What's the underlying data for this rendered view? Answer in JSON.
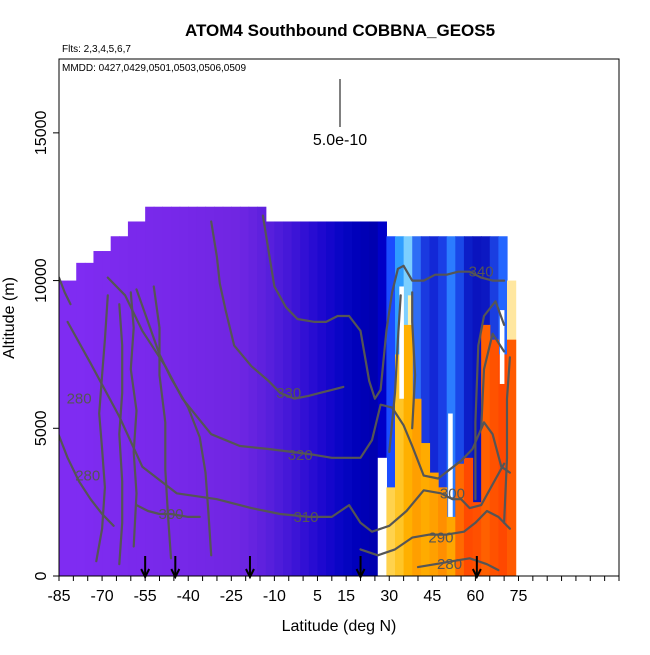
{
  "chart_data": {
    "type": "heatmap",
    "title": "ATOM4 Southbound COBBNA_GEOS5",
    "subtitle_flights": "Flts: 2,3,4,5,6,7",
    "subtitle_dates": "MMDD: 0427,0429,0501,0503,0506,0509",
    "xlabel": "Latitude (deg N)",
    "ylabel": "Altitude (m)",
    "xlim": [
      -85,
      110
    ],
    "ylim": [
      0,
      17500
    ],
    "x_ticks": [
      -85,
      -70,
      -55,
      -40,
      -25,
      -10,
      5,
      15,
      30,
      45,
      60,
      75
    ],
    "y_ticks": [
      0,
      5000,
      10000,
      15000
    ],
    "colorbar_label": "5.0e-10",
    "flight_profile_latitudes": [
      -55,
      -44.5,
      -18.5,
      20,
      60.5
    ],
    "contour_levels": [
      280,
      290,
      300,
      310,
      320,
      330,
      340
    ],
    "contour_labels": [
      {
        "label": "340",
        "lat": 62,
        "alt": 10300
      },
      {
        "label": "330",
        "lat": -5,
        "alt": 6200
      },
      {
        "label": "320",
        "lat": -1,
        "alt": 4100
      },
      {
        "label": "310",
        "lat": 1,
        "alt": 2000
      },
      {
        "label": "300",
        "lat": 52,
        "alt": 2800
      },
      {
        "label": "290",
        "lat": 48,
        "alt": 1300
      },
      {
        "label": "280",
        "lat": 51,
        "alt": 400
      },
      {
        "label": "280",
        "lat": -78,
        "alt": 6000
      },
      {
        "label": "280",
        "lat": -75,
        "alt": 3400
      },
      {
        "label": "300",
        "lat": -46,
        "alt": 2100
      }
    ],
    "columns": [
      {
        "lat": -85,
        "top": 10000,
        "color": "#7f2cf2"
      },
      {
        "lat": -82,
        "top": 10000,
        "color": "#7f2cf2"
      },
      {
        "lat": -79,
        "top": 10600,
        "color": "#7f2cf2"
      },
      {
        "lat": -76,
        "top": 10600,
        "color": "#7e2bf1"
      },
      {
        "lat": -73,
        "top": 11000,
        "color": "#7d2bef"
      },
      {
        "lat": -70,
        "top": 11000,
        "color": "#7d2bef"
      },
      {
        "lat": -67,
        "top": 11500,
        "color": "#7c2aee"
      },
      {
        "lat": -64,
        "top": 11500,
        "color": "#7b2aed"
      },
      {
        "lat": -61,
        "top": 12000,
        "color": "#7a29ec"
      },
      {
        "lat": -58,
        "top": 12000,
        "color": "#7a29ec"
      },
      {
        "lat": -55,
        "top": 12500,
        "color": "#7929eb"
      },
      {
        "lat": -52,
        "top": 12500,
        "color": "#7829ea"
      },
      {
        "lat": -49,
        "top": 12500,
        "color": "#7828ea"
      },
      {
        "lat": -46,
        "top": 12500,
        "color": "#7728e9"
      },
      {
        "lat": -43,
        "top": 12500,
        "color": "#7628e8"
      },
      {
        "lat": -40,
        "top": 12500,
        "color": "#7527e7"
      },
      {
        "lat": -37,
        "top": 12500,
        "color": "#7427e6"
      },
      {
        "lat": -34,
        "top": 12500,
        "color": "#7327e5"
      },
      {
        "lat": -31,
        "top": 12500,
        "color": "#7226e4"
      },
      {
        "lat": -28,
        "top": 12500,
        "color": "#7126e3"
      },
      {
        "lat": -25,
        "top": 12500,
        "color": "#7026e2"
      },
      {
        "lat": -22,
        "top": 12500,
        "color": "#6c25e2"
      },
      {
        "lat": -19,
        "top": 12500,
        "color": "#6623e0"
      },
      {
        "lat": -16,
        "top": 12500,
        "color": "#5f21de"
      },
      {
        "lat": -13,
        "top": 12000,
        "color": "#571fdc"
      },
      {
        "lat": -10,
        "top": 12000,
        "color": "#4e1cda"
      },
      {
        "lat": -7,
        "top": 12000,
        "color": "#4618d8"
      },
      {
        "lat": -4,
        "top": 12000,
        "color": "#3c14d6"
      },
      {
        "lat": -1,
        "top": 12000,
        "color": "#3210d4"
      },
      {
        "lat": 2,
        "top": 12000,
        "color": "#280cd2"
      },
      {
        "lat": 5,
        "top": 12000,
        "color": "#1e08cf"
      },
      {
        "lat": 8,
        "top": 12000,
        "color": "#1406cb"
      },
      {
        "lat": 11,
        "top": 12000,
        "color": "#0a05c6"
      },
      {
        "lat": 14,
        "top": 12000,
        "color": "#0404c0"
      },
      {
        "lat": 17,
        "top": 12000,
        "color": "#0000bb"
      },
      {
        "lat": 20,
        "top": 12000,
        "color": "#0000b5"
      },
      {
        "lat": 23,
        "top": 12000,
        "color": "#0000b0"
      },
      {
        "lat": 26,
        "top": 12000,
        "color": "#0000c8"
      },
      {
        "lat": 29,
        "top": 11500,
        "color": "#1a4cff"
      },
      {
        "lat": 32,
        "top": 11500,
        "color": "#2f9dff"
      },
      {
        "lat": 35,
        "top": 11500,
        "color": "#7ccfff"
      },
      {
        "lat": 38,
        "top": 11500,
        "color": "#2e6df5"
      },
      {
        "lat": 41,
        "top": 11500,
        "color": "#1a3ae0"
      },
      {
        "lat": 44,
        "top": 11500,
        "color": "#1328d6"
      },
      {
        "lat": 47,
        "top": 11500,
        "color": "#1a3ee6"
      },
      {
        "lat": 50,
        "top": 11500,
        "color": "#2b7cff"
      },
      {
        "lat": 53,
        "top": 11500,
        "color": "#1a48e8"
      },
      {
        "lat": 56,
        "top": 11500,
        "color": "#0c1ec8"
      },
      {
        "lat": 59,
        "top": 11500,
        "color": "#0a14bf"
      },
      {
        "lat": 62,
        "top": 11500,
        "color": "#0c18c2"
      },
      {
        "lat": 65,
        "top": 11500,
        "color": "#1a3ee0"
      },
      {
        "lat": 68,
        "top": 11500,
        "color": "#2466ff"
      },
      {
        "lat": 71,
        "top": 10000,
        "color": "#ffe7a0"
      }
    ],
    "lower_patches": [
      {
        "lat": 26,
        "top": 4000,
        "color": "#ffffff"
      },
      {
        "lat": 29,
        "top": 3000,
        "color": "#ffd24d"
      },
      {
        "lat": 32,
        "top": 7500,
        "color": "#ffc526"
      },
      {
        "lat": 35,
        "top": 8500,
        "color": "#ffb000"
      },
      {
        "lat": 38,
        "top": 6000,
        "color": "#ff9f00"
      },
      {
        "lat": 41,
        "top": 4500,
        "color": "#ffab00"
      },
      {
        "lat": 44,
        "top": 3500,
        "color": "#ffa000"
      },
      {
        "lat": 47,
        "top": 3000,
        "color": "#ff8f00"
      },
      {
        "lat": 50,
        "top": 2000,
        "color": "#ffa600"
      },
      {
        "lat": 53,
        "top": 3800,
        "color": "#ff6a00"
      },
      {
        "lat": 56,
        "top": 4000,
        "color": "#ff4a00"
      },
      {
        "lat": 59,
        "top": 2500,
        "color": "#ff5000"
      },
      {
        "lat": 62,
        "top": 8500,
        "color": "#ff6000"
      },
      {
        "lat": 65,
        "top": 8000,
        "color": "#ff5200"
      },
      {
        "lat": 68,
        "top": 7500,
        "color": "#ff4800"
      },
      {
        "lat": 71,
        "top": 8000,
        "color": "#ff5a00"
      }
    ],
    "light_strips": [
      {
        "lat": 33.5,
        "bottom": 6000,
        "top": 9800,
        "color": "#ffffff"
      },
      {
        "lat": 36.5,
        "bottom": 8500,
        "top": 9500,
        "color": "#fff3b0"
      },
      {
        "lat": 50.5,
        "bottom": 2000,
        "top": 5500,
        "color": "#ffffff"
      },
      {
        "lat": 68.5,
        "bottom": 6500,
        "top": 9000,
        "color": "#ffffff"
      }
    ],
    "contours": [
      {
        "points": [
          [
            -14,
            12200
          ],
          [
            -12,
            11000
          ],
          [
            -10,
            9800
          ],
          [
            -6,
            9100
          ],
          [
            -2,
            8700
          ],
          [
            4,
            8600
          ],
          [
            8,
            8600
          ],
          [
            12,
            8800
          ],
          [
            16,
            8800
          ],
          [
            20,
            8300
          ],
          [
            23,
            6600
          ],
          [
            25,
            6000
          ],
          [
            27,
            6300
          ],
          [
            29,
            8300
          ],
          [
            31,
            9600
          ],
          [
            33,
            10400
          ],
          [
            35,
            10500
          ],
          [
            38,
            10000
          ],
          [
            42,
            10000
          ],
          [
            46,
            10200
          ],
          [
            50,
            10200
          ],
          [
            54,
            10300
          ],
          [
            58,
            10300
          ],
          [
            62,
            10100
          ],
          [
            66,
            10000
          ],
          [
            70,
            10000
          ]
        ]
      },
      {
        "points": [
          [
            -32,
            12000
          ],
          [
            -30,
            10800
          ],
          [
            -29,
            9900
          ],
          [
            -27,
            9000
          ],
          [
            -24,
            7800
          ],
          [
            -18,
            7100
          ],
          [
            -12,
            6600
          ],
          [
            -8,
            6200
          ],
          [
            -3,
            6000
          ],
          [
            2,
            6100
          ],
          [
            6,
            6200
          ],
          [
            10,
            6300
          ],
          [
            14,
            6400
          ]
        ]
      },
      {
        "points": [
          [
            -68,
            10100
          ],
          [
            -62,
            9500
          ],
          [
            -56,
            8300
          ],
          [
            -48,
            7100
          ],
          [
            -42,
            6000
          ],
          [
            -32,
            4800
          ],
          [
            -22,
            4400
          ],
          [
            -12,
            4300
          ],
          [
            -4,
            4200
          ],
          [
            4,
            4100
          ],
          [
            10,
            4000
          ],
          [
            16,
            4000
          ],
          [
            20,
            4000
          ],
          [
            24,
            4600
          ],
          [
            27,
            5800
          ],
          [
            31,
            5700
          ],
          [
            35,
            5100
          ],
          [
            38,
            4400
          ],
          [
            42,
            3400
          ],
          [
            47,
            3300
          ],
          [
            51,
            3600
          ],
          [
            55,
            3900
          ],
          [
            59,
            4300
          ],
          [
            63,
            5200
          ],
          [
            66,
            4800
          ],
          [
            69,
            3700
          ],
          [
            72,
            3500
          ]
        ]
      },
      {
        "points": [
          [
            -82,
            8600
          ],
          [
            -74,
            7200
          ],
          [
            -64,
            5400
          ],
          [
            -56,
            3700
          ],
          [
            -44,
            2800
          ],
          [
            -30,
            2600
          ],
          [
            -18,
            2300
          ],
          [
            -8,
            2100
          ],
          [
            2,
            2000
          ],
          [
            10,
            2000
          ],
          [
            16,
            2400
          ],
          [
            20,
            1800
          ],
          [
            24,
            1500
          ],
          [
            30,
            1700
          ],
          [
            36,
            2200
          ],
          [
            42,
            2900
          ],
          [
            48,
            2800
          ],
          [
            52,
            2600
          ],
          [
            55,
            2600
          ],
          [
            58,
            2300
          ],
          [
            62,
            2400
          ],
          [
            66,
            3100
          ],
          [
            70,
            3800
          ]
        ]
      },
      {
        "points": [
          [
            20,
            900
          ],
          [
            26,
            700
          ],
          [
            32,
            900
          ],
          [
            38,
            1300
          ],
          [
            44,
            1400
          ],
          [
            50,
            1400
          ],
          [
            56,
            1500
          ],
          [
            60,
            1800
          ],
          [
            64,
            2200
          ],
          [
            68,
            2000
          ],
          [
            72,
            1600
          ]
        ]
      },
      {
        "points": [
          [
            40,
            300
          ],
          [
            46,
            400
          ],
          [
            52,
            500
          ],
          [
            58,
            600
          ],
          [
            64,
            400
          ],
          [
            68,
            200
          ]
        ]
      },
      {
        "points": [
          [
            -85,
            10100
          ],
          [
            -83,
            9600
          ],
          [
            -81,
            9200
          ]
        ]
      },
      {
        "points": [
          [
            -58,
            9700
          ],
          [
            -54,
            8600
          ],
          [
            -50,
            7500
          ],
          [
            -46,
            6700
          ],
          [
            -40,
            5700
          ],
          [
            -36,
            4700
          ],
          [
            -34,
            3500
          ],
          [
            -33,
            2200
          ],
          [
            -32,
            700
          ]
        ]
      },
      {
        "points": [
          [
            -86,
            5000
          ],
          [
            -82,
            4000
          ],
          [
            -78,
            3200
          ],
          [
            -74,
            2600
          ],
          [
            -70,
            2100
          ],
          [
            -66,
            1700
          ]
        ]
      },
      {
        "points": [
          [
            -58,
            2400
          ],
          [
            -54,
            2200
          ],
          [
            -50,
            2100
          ],
          [
            -46,
            2100
          ],
          [
            -40,
            2000
          ],
          [
            -36,
            2000
          ]
        ]
      },
      {
        "points": [
          [
            -68,
            9500
          ],
          [
            -69,
            8000
          ],
          [
            -70,
            6800
          ],
          [
            -71,
            5500
          ],
          [
            -70,
            4300
          ],
          [
            -69,
            3000
          ],
          [
            -70,
            1600
          ],
          [
            -72,
            500
          ]
        ]
      },
      {
        "points": [
          [
            -64,
            9200
          ],
          [
            -63,
            7800
          ],
          [
            -63,
            6200
          ],
          [
            -64,
            4800
          ],
          [
            -63,
            3200
          ],
          [
            -63,
            1800
          ],
          [
            -64,
            400
          ]
        ]
      },
      {
        "points": [
          [
            -60,
            9600
          ],
          [
            -59,
            8400
          ],
          [
            -60,
            7000
          ],
          [
            -58,
            5600
          ],
          [
            -59,
            4200
          ],
          [
            -58,
            2800
          ],
          [
            -59,
            1000
          ]
        ]
      },
      {
        "points": [
          [
            -52,
            9800
          ],
          [
            -50,
            8400
          ],
          [
            -50,
            6800
          ],
          [
            -48,
            5200
          ],
          [
            -48,
            3600
          ],
          [
            -47,
            2000
          ],
          [
            -46,
            600
          ]
        ]
      },
      {
        "points": [
          [
            30,
            4200
          ],
          [
            32,
            6200
          ],
          [
            33,
            8000
          ],
          [
            34,
            9500
          ]
        ]
      },
      {
        "points": [
          [
            38,
            5000
          ],
          [
            39,
            6800
          ],
          [
            38,
            8600
          ],
          [
            38,
            9600
          ]
        ]
      },
      {
        "points": [
          [
            60,
            2600
          ],
          [
            60,
            5200
          ],
          [
            61,
            7800
          ],
          [
            63,
            8800
          ],
          [
            67,
            9300
          ],
          [
            70,
            8500
          ]
        ]
      },
      {
        "points": [
          [
            62,
            5000
          ],
          [
            63,
            7000
          ],
          [
            66,
            8200
          ],
          [
            70,
            7600
          ]
        ]
      },
      {
        "points": [
          [
            70,
            1800
          ],
          [
            71,
            4000
          ],
          [
            71,
            6000
          ],
          [
            72,
            7400
          ]
        ]
      }
    ]
  }
}
